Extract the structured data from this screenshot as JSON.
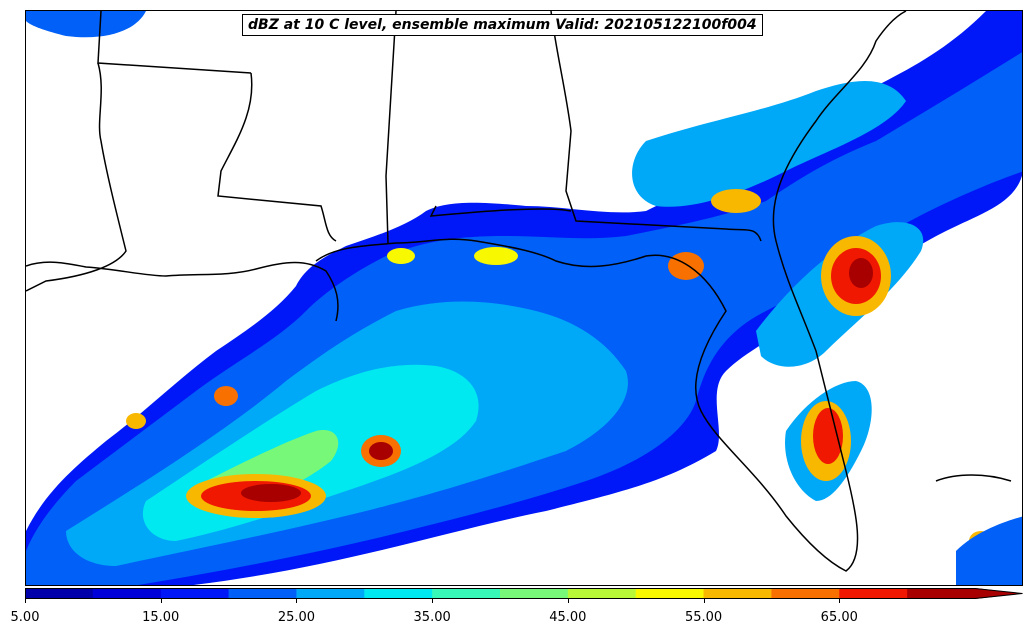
{
  "title": "dBZ at 10 C level, ensemble maximum Valid: 202105122100f004",
  "colorbar": {
    "ticks": [
      "5.00",
      "15.00",
      "25.00",
      "35.00",
      "45.00",
      "55.00",
      "65.00"
    ],
    "levels": [
      5,
      10,
      15,
      20,
      25,
      30,
      35,
      40,
      45,
      50,
      55,
      60,
      65,
      70
    ],
    "colors": [
      "#0000aa",
      "#0000d8",
      "#0018f8",
      "#0060f8",
      "#00a8f8",
      "#00e8f0",
      "#38f8b8",
      "#78f878",
      "#b8f838",
      "#f8f800",
      "#f8b800",
      "#f87000",
      "#f01800",
      "#a80000"
    ],
    "extend": "max"
  }
}
